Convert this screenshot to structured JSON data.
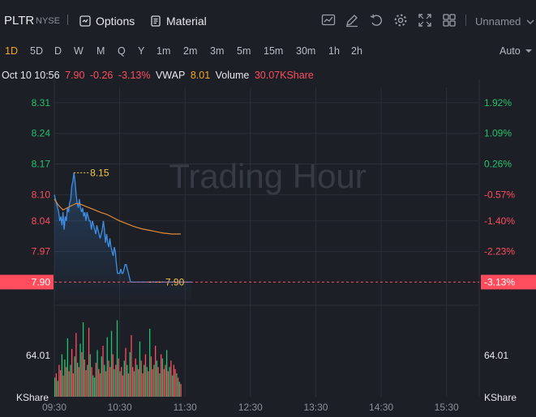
{
  "header": {
    "symbol": "PLTR",
    "exchange": "NYSE",
    "options_label": "Options",
    "material_label": "Material",
    "layout_name": "Unnamed",
    "icons": [
      "chart-style-icon",
      "draw-icon",
      "undo-icon",
      "settings-icon",
      "fullscreen-icon",
      "layout-grid-icon"
    ]
  },
  "periods": {
    "items": [
      "1D",
      "5D",
      "D",
      "W",
      "M",
      "Q",
      "Y",
      "1m",
      "2m",
      "3m",
      "5m",
      "15m",
      "30m",
      "1h",
      "2h"
    ],
    "active": "1D",
    "scale_mode": "Auto"
  },
  "info": {
    "datetime": "Oct 10 10:56",
    "price": "7.90",
    "change": "-0.26",
    "change_pct": "-3.13%",
    "vwap_label": "VWAP",
    "vwap_value": "8.01",
    "volume_label": "Volume",
    "volume_value": "30.07KShare"
  },
  "chart_data": {
    "type": "line",
    "watermark": "Trading Hour",
    "prev_close": 8.16,
    "ylim": [
      7.86,
      8.345
    ],
    "y_ticks": [
      "8.31",
      "8.24",
      "8.17",
      "8.10",
      "8.04",
      "7.97"
    ],
    "y_tick_values": [
      8.31,
      8.24,
      8.17,
      8.1,
      8.04,
      7.97
    ],
    "pct_ticks": [
      "1.92%",
      "1.09%",
      "0.26%",
      "-0.57%",
      "-1.40%",
      "-2.23%"
    ],
    "pct_colors": [
      "#22c36e",
      "#22c36e",
      "#22c36e",
      "#ff4d5e",
      "#ff4d5e",
      "#ff4d5e"
    ],
    "x_ticks": [
      "09:30",
      "10:30",
      "11:30",
      "12:30",
      "13:30",
      "14:30",
      "15:30"
    ],
    "x_tick_minutes": [
      0,
      60,
      120,
      180,
      240,
      300,
      360
    ],
    "session_minutes": 390,
    "current_price": "7.90",
    "current_pct": "-3.13%",
    "high_label": "8.15",
    "high_value": 8.15,
    "high_minute": 18,
    "low_label": "7.90",
    "low_value": 7.9,
    "low_minute": 87,
    "series": [
      {
        "name": "Price",
        "color": "#3d8fe6",
        "x": [
          0,
          1,
          2,
          3,
          4,
          5,
          6,
          7,
          8,
          9,
          10,
          11,
          12,
          13,
          14,
          15,
          16,
          17,
          18,
          19,
          20,
          21,
          22,
          23,
          24,
          25,
          26,
          27,
          28,
          29,
          30,
          31,
          32,
          33,
          34,
          35,
          36,
          37,
          38,
          39,
          40,
          41,
          42,
          43,
          44,
          45,
          46,
          47,
          48,
          49,
          50,
          51,
          52,
          53,
          54,
          55,
          56,
          57,
          58,
          59,
          60,
          61,
          62,
          63,
          64,
          65,
          66,
          67,
          68,
          69,
          70,
          71,
          72,
          73,
          74,
          75,
          76,
          77,
          78,
          79,
          80,
          81,
          82,
          83,
          84,
          85,
          86,
          87,
          88,
          89,
          90,
          91,
          92,
          93,
          94,
          95,
          96,
          97,
          98,
          99,
          100,
          101,
          102,
          103,
          104,
          105,
          106,
          107,
          108,
          109,
          110,
          111,
          112,
          113,
          114,
          115,
          116,
          117,
          118,
          119,
          120,
          121,
          122,
          123,
          124,
          125,
          126
        ],
        "y": [
          8.1,
          8.09,
          8.08,
          8.07,
          8.06,
          8.04,
          8.05,
          8.03,
          8.06,
          8.02,
          8.05,
          8.04,
          8.07,
          8.06,
          8.08,
          8.09,
          8.12,
          8.13,
          8.15,
          8.13,
          8.1,
          8.08,
          8.07,
          8.09,
          8.07,
          8.06,
          8.07,
          8.05,
          8.06,
          8.04,
          8.06,
          8.05,
          8.04,
          8.04,
          8.02,
          8.04,
          8.03,
          8.02,
          8.01,
          8.03,
          8.02,
          8.01,
          8.0,
          8.01,
          8.02,
          8.04,
          8.02,
          7.99,
          8.01,
          7.99,
          7.98,
          8.0,
          7.98,
          7.97,
          7.96,
          7.98,
          7.97,
          7.94,
          7.92,
          7.92,
          7.92,
          7.93,
          7.92,
          7.92,
          7.93,
          7.94,
          7.94,
          7.93,
          7.92,
          7.91,
          7.9,
          7.9,
          7.9,
          7.9,
          7.9,
          7.9,
          7.9,
          7.9,
          7.9,
          7.9,
          7.9,
          7.9,
          7.9,
          7.9,
          7.9,
          7.9,
          7.9,
          7.9,
          7.9,
          7.9,
          7.9,
          7.9,
          7.9,
          7.9,
          7.9,
          7.9,
          7.9,
          7.9,
          7.9,
          7.9,
          7.9,
          7.9,
          7.9,
          7.9,
          7.9,
          7.9,
          7.9,
          7.9,
          7.9,
          7.9,
          7.9,
          7.9,
          7.9,
          7.9,
          7.9,
          7.9,
          7.9,
          7.9,
          7.9,
          7.9,
          7.9,
          7.9,
          7.9,
          7.9,
          7.9,
          7.9,
          7.9
        ]
      },
      {
        "name": "VWAP",
        "color": "#e08a3a",
        "x": [
          0,
          4,
          8,
          12,
          16,
          20,
          24,
          28,
          32,
          36,
          40,
          44,
          48,
          52,
          56,
          60,
          64,
          68,
          72,
          76,
          80,
          84,
          88,
          92,
          96,
          100,
          104,
          108,
          112,
          116
        ],
        "y": [
          8.09,
          8.075,
          8.065,
          8.07,
          8.075,
          8.08,
          8.078,
          8.074,
          8.07,
          8.066,
          8.062,
          8.058,
          8.055,
          8.05,
          8.045,
          8.04,
          8.036,
          8.032,
          8.028,
          8.025,
          8.022,
          8.02,
          8.018,
          8.016,
          8.014,
          8.012,
          8.011,
          8.01,
          8.01,
          8.01
        ]
      }
    ],
    "volume": {
      "label": "64.01",
      "unit": "KShare",
      "max": 80,
      "bars": [
        18,
        22,
        15,
        30,
        25,
        40,
        20,
        35,
        28,
        55,
        24,
        30,
        45,
        22,
        38,
        60,
        32,
        28,
        50,
        42,
        70,
        35,
        25,
        30,
        65,
        40,
        28,
        20,
        18,
        32,
        44,
        26,
        22,
        38,
        48,
        30,
        24,
        56,
        34,
        28,
        62,
        40,
        26,
        30,
        72,
        36,
        24,
        28,
        20,
        34,
        46,
        30,
        22,
        42,
        58,
        28,
        24,
        36,
        30,
        26,
        52,
        34,
        22,
        30,
        40,
        28,
        24,
        64,
        38,
        26,
        30,
        48,
        34,
        28,
        22,
        40,
        36,
        26,
        30,
        44,
        24,
        28,
        34,
        20,
        30,
        26,
        22,
        18,
        14,
        12
      ],
      "colors": [
        "g",
        "r",
        "g",
        "r",
        "r",
        "g",
        "r",
        "g",
        "r",
        "g",
        "r",
        "g",
        "r",
        "r",
        "g",
        "r",
        "g",
        "r",
        "g",
        "r",
        "g",
        "r",
        "r",
        "g",
        "r",
        "g",
        "r",
        "g",
        "g",
        "r",
        "g",
        "r",
        "r",
        "g",
        "r",
        "g",
        "r",
        "g",
        "r",
        "r",
        "g",
        "r",
        "g",
        "r",
        "g",
        "r",
        "g",
        "r",
        "r",
        "g",
        "r",
        "g",
        "r",
        "g",
        "r",
        "r",
        "g",
        "r",
        "g",
        "r",
        "g",
        "r",
        "r",
        "g",
        "r",
        "g",
        "r",
        "g",
        "r",
        "r",
        "g",
        "r",
        "g",
        "r",
        "g",
        "r",
        "g",
        "r",
        "r",
        "g",
        "r",
        "g",
        "r",
        "g",
        "r",
        "r",
        "g",
        "r",
        "g",
        "r"
      ]
    }
  }
}
